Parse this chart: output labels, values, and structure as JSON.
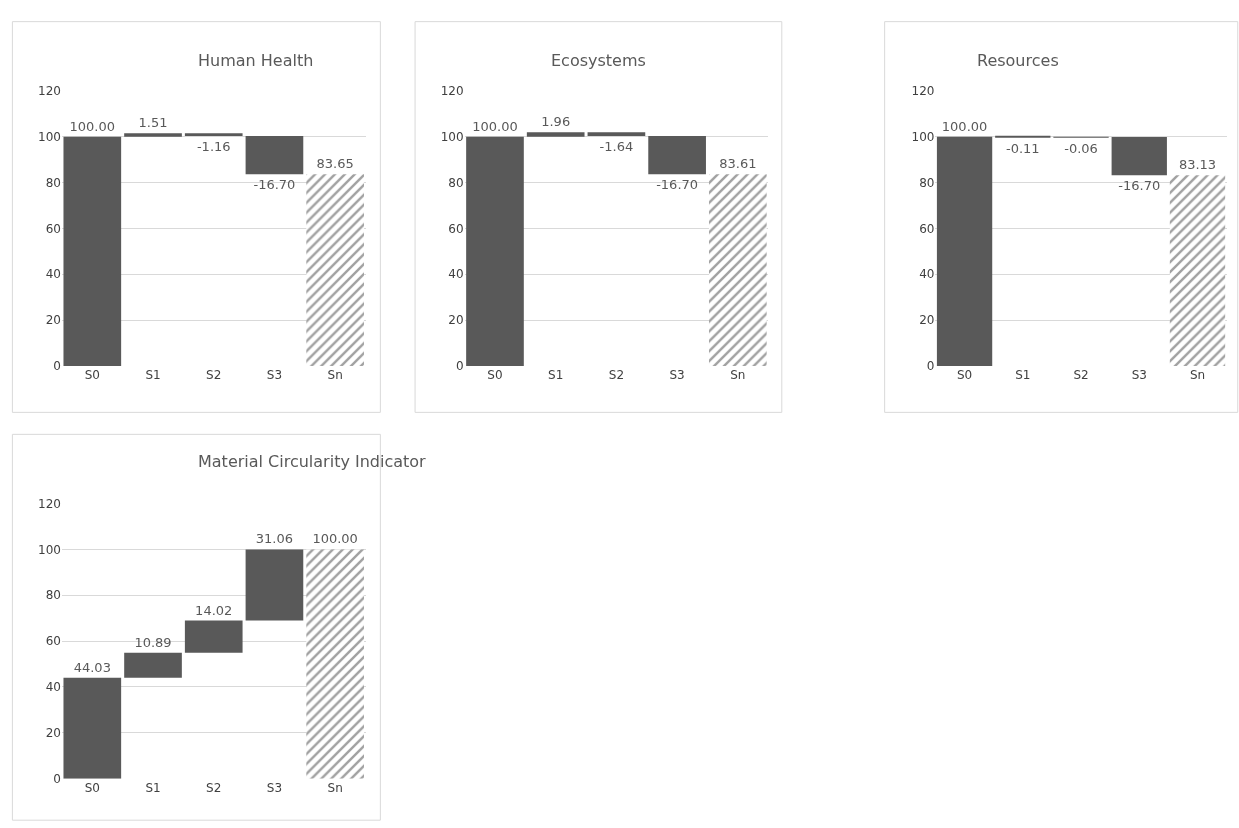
{
  "chart_data": [
    {
      "type": "bar",
      "title": "Human Health",
      "categories": [
        "S0",
        "S1",
        "S2",
        "S3",
        "Sn"
      ],
      "values": [
        100,
        1.51,
        -1.16,
        -16.7,
        83.65
      ],
      "base": [
        0,
        100,
        101.51,
        100.35,
        0
      ],
      "value_labels": [
        "100.00",
        "1.51",
        "-1.16",
        "-16.70",
        "83.65"
      ],
      "colors": [
        "#595959",
        "#595959",
        "#595959",
        "#595959",
        "#595959"
      ],
      "ylim": [
        0,
        120
      ],
      "yticks": [
        0,
        20,
        40,
        60,
        80,
        100,
        120
      ],
      "grid": "y"
    },
    {
      "type": "bar",
      "title": "Ecosystems",
      "categories": [
        "S0",
        "S1",
        "S2",
        "S3",
        "Sn"
      ],
      "values": [
        100,
        1.96,
        -1.64,
        -16.7,
        83.61
      ],
      "base": [
        0,
        100,
        101.96,
        100.32,
        0
      ],
      "value_labels": [
        "100.00",
        "1.96",
        "-1.64",
        "-16.70",
        "83.61"
      ],
      "colors": [
        "#595959",
        "#595959",
        "#595959",
        "#595959",
        "#595959"
      ],
      "ylim": [
        0,
        120
      ],
      "yticks": [
        0,
        20,
        40,
        60,
        80,
        100,
        120
      ],
      "grid": "y"
    },
    {
      "type": "bar",
      "title": "Resources",
      "categories": [
        "S0",
        "S1",
        "S2",
        "S3",
        "Sn"
      ],
      "values": [
        100,
        -0.11,
        -0.06,
        -16.7,
        83.13
      ],
      "base": [
        0,
        100,
        99.89,
        99.83,
        0
      ],
      "value_labels": [
        "100.00",
        "-0.11",
        "-0.06",
        "-16.70",
        "83.13"
      ],
      "colors": [
        "#595959",
        "#595959",
        "#595959",
        "#595959",
        "#595959"
      ],
      "ylim": [
        0,
        120
      ],
      "yticks": [
        0,
        20,
        40,
        60,
        80,
        100,
        120
      ],
      "grid": "y"
    },
    {
      "type": "bar",
      "title": "Material Circularity Indicator",
      "categories": [
        "S0",
        "S1",
        "S2",
        "S3",
        "Sn"
      ],
      "values": [
        44.03,
        10.89,
        14.02,
        31.06,
        100
      ],
      "base": [
        0,
        44.03,
        54.92,
        68.94,
        0
      ],
      "value_labels": [
        "44.03",
        "10.89",
        "14.02",
        "31.06",
        "100.00"
      ],
      "colors": [
        "#595959",
        "#595959",
        "#595959",
        "#595959",
        "#595959"
      ],
      "ylim": [
        0,
        120
      ],
      "yticks": [
        0,
        20,
        40,
        60,
        80,
        100,
        120
      ],
      "grid": "y"
    }
  ]
}
